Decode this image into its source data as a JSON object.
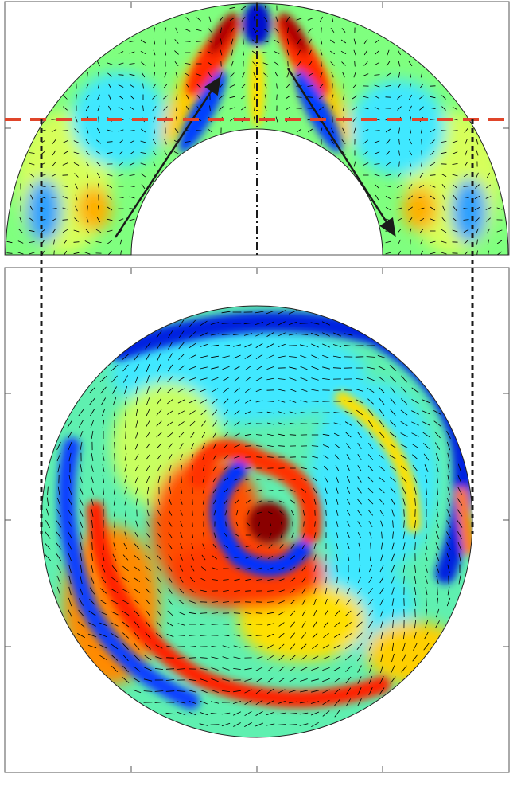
{
  "figure": {
    "colormap": [
      "#00007f",
      "#0000ff",
      "#007fff",
      "#00ffff",
      "#7fff7f",
      "#ffff00",
      "#ff7f00",
      "#ff0000",
      "#7f0000"
    ],
    "panel_frame_color": "#555555",
    "cut_line_color": "#e0452a",
    "projection_line_color": "#1a1a1a",
    "arrow_color": "#1a1a1a",
    "quiver_color": "#000000",
    "panels": [
      {
        "name": "meridional-section",
        "shape": "half-annulus"
      },
      {
        "name": "horizontal-section",
        "shape": "disk"
      }
    ]
  }
}
